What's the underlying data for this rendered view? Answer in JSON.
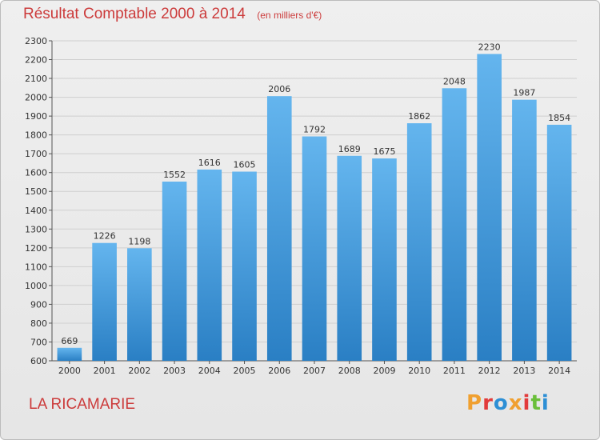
{
  "header": {
    "title": "Résultat Comptable 2000 à 2014",
    "unit": "(en milliers d'€)"
  },
  "footer": {
    "commune": "LA RICAMARIE",
    "logo_text": "Proxiti",
    "logo_colors": [
      "#f0a030",
      "#e23b3b",
      "#2d8fd5",
      "#f0a030",
      "#e23b3b",
      "#6abf3a",
      "#2d8fd5"
    ]
  },
  "colors": {
    "bar_light": "#64b5ee",
    "bar_dark": "#2a7fc4",
    "grid": "#cfcfcf",
    "title": "#cc3b3b"
  },
  "chart_data": {
    "type": "bar",
    "title": "Résultat Comptable 2000 à 2014",
    "subtitle": "(en milliers d'€)",
    "categories": [
      "2000",
      "2001",
      "2002",
      "2003",
      "2004",
      "2005",
      "2006",
      "2007",
      "2008",
      "2009",
      "2010",
      "2011",
      "2012",
      "2013",
      "2014"
    ],
    "values": [
      669,
      1226,
      1198,
      1552,
      1616,
      1605,
      2006,
      1792,
      1689,
      1675,
      1862,
      2048,
      2230,
      1987,
      1854
    ],
    "ylim": [
      600,
      2300
    ],
    "yticks": [
      600,
      700,
      800,
      900,
      1000,
      1100,
      1200,
      1300,
      1400,
      1500,
      1600,
      1700,
      1800,
      1900,
      2000,
      2100,
      2200,
      2300
    ],
    "grid": true,
    "data_labels": true
  }
}
